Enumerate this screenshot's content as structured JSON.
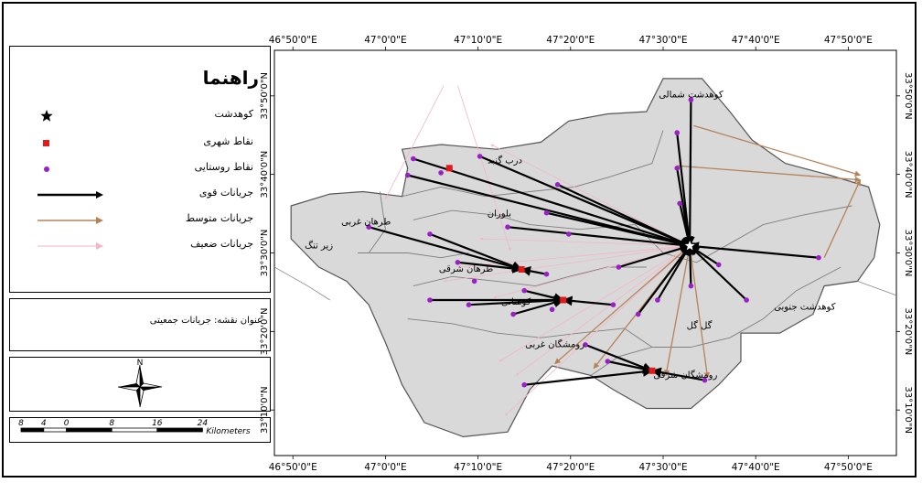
{
  "legend": {
    "title": "راهنما",
    "items": [
      {
        "label": "کوهدشت",
        "symbol": "star",
        "color": "#000000"
      },
      {
        "label": "نقاط شهری",
        "symbol": "square",
        "color": "#e31a1c"
      },
      {
        "label": "نقاط روستایی",
        "symbol": "dot",
        "color": "#9b1fc7"
      },
      {
        "label": "جریانات قوی",
        "symbol": "arrow-strong",
        "color": "#000000"
      },
      {
        "label": "جریانات متوسط",
        "symbol": "arrow-medium",
        "color": "#b5835a"
      },
      {
        "label": "جریانات ضعیف",
        "symbol": "arrow-weak",
        "color": "#f2b7c5"
      }
    ]
  },
  "map_title": "عنوان نقشه: جریانات جمعیتی",
  "scale_bar": {
    "ticks": [
      "8",
      "4",
      "0",
      "8",
      "16",
      "24"
    ],
    "unit": "Kilometers"
  },
  "north_label": "N",
  "x_ticks": [
    {
      "label": "46°50'0\"E",
      "lon": 46.8333
    },
    {
      "label": "47°0'0\"E",
      "lon": 47.0
    },
    {
      "label": "47°10'0\"E",
      "lon": 47.1667
    },
    {
      "label": "47°20'0\"E",
      "lon": 47.3333
    },
    {
      "label": "47°30'0\"E",
      "lon": 47.5
    },
    {
      "label": "47°40'0\"E",
      "lon": 47.6667
    },
    {
      "label": "47°50'0\"E",
      "lon": 47.8333
    }
  ],
  "y_ticks": [
    {
      "label": "33°50'0\"N",
      "lat": 33.8333
    },
    {
      "label": "33°40'0\"N",
      "lat": 33.6667
    },
    {
      "label": "33°30'0\"N",
      "lat": 33.5
    },
    {
      "label": "33°20'0\"N",
      "lat": 33.3333
    },
    {
      "label": "33°10'0\"N",
      "lat": 33.1667
    }
  ],
  "place_labels": [
    {
      "name": "کوهدشت شمالی",
      "lon": 47.55,
      "lat": 33.83
    },
    {
      "name": "درب گنبد",
      "lon": 47.215,
      "lat": 33.69
    },
    {
      "name": "بلوران",
      "lon": 47.205,
      "lat": 33.578
    },
    {
      "name": "طرهان غربی",
      "lon": 46.965,
      "lat": 33.56
    },
    {
      "name": "زیر تنگ",
      "lon": 46.88,
      "lat": 33.51
    },
    {
      "name": "طرهان شرقی",
      "lon": 47.145,
      "lat": 33.46
    },
    {
      "name": "کوهنانی",
      "lon": 47.235,
      "lat": 33.39
    },
    {
      "name": "کوهدشت جنوبی",
      "lon": 47.755,
      "lat": 33.38
    },
    {
      "name": "گل گل",
      "lon": 47.565,
      "lat": 33.34
    },
    {
      "name": "رومشگان غربی",
      "lon": 47.305,
      "lat": 33.3
    },
    {
      "name": "رومشگان شرقی",
      "lon": 47.54,
      "lat": 33.235
    }
  ],
  "hub": {
    "name": "کوهدشت",
    "lon": 47.548,
    "lat": 33.515
  },
  "urban_points": [
    {
      "lon": 47.115,
      "lat": 33.68
    },
    {
      "lon": 47.245,
      "lat": 33.465
    },
    {
      "lon": 47.32,
      "lat": 33.4
    },
    {
      "lon": 47.48,
      "lat": 33.25
    }
  ],
  "strong_flows": [
    {
      "from": [
        47.17,
        33.705
      ],
      "to": [
        47.548,
        33.515
      ]
    },
    {
      "from": [
        47.05,
        33.7
      ],
      "to": [
        47.548,
        33.515
      ]
    },
    {
      "from": [
        47.04,
        33.665
      ],
      "to": [
        47.548,
        33.515
      ]
    },
    {
      "from": [
        47.31,
        33.645
      ],
      "to": [
        47.548,
        33.515
      ]
    },
    {
      "from": [
        47.29,
        33.585
      ],
      "to": [
        47.548,
        33.515
      ]
    },
    {
      "from": [
        47.22,
        33.555
      ],
      "to": [
        47.548,
        33.515
      ]
    },
    {
      "from": [
        47.53,
        33.605
      ],
      "to": [
        47.548,
        33.515
      ]
    },
    {
      "from": [
        47.55,
        33.825
      ],
      "to": [
        47.548,
        33.515
      ]
    },
    {
      "from": [
        47.525,
        33.755
      ],
      "to": [
        47.548,
        33.515
      ]
    },
    {
      "from": [
        47.525,
        33.68
      ],
      "to": [
        47.548,
        33.515
      ]
    },
    {
      "from": [
        47.78,
        33.49
      ],
      "to": [
        47.548,
        33.515
      ]
    },
    {
      "from": [
        47.6,
        33.475
      ],
      "to": [
        47.548,
        33.515
      ]
    },
    {
      "from": [
        47.65,
        33.4
      ],
      "to": [
        47.548,
        33.515
      ]
    },
    {
      "from": [
        47.55,
        33.43
      ],
      "to": [
        47.548,
        33.515
      ]
    },
    {
      "from": [
        47.49,
        33.4
      ],
      "to": [
        47.548,
        33.515
      ]
    },
    {
      "from": [
        47.455,
        33.37
      ],
      "to": [
        47.548,
        33.515
      ]
    },
    {
      "from": [
        47.42,
        33.47
      ],
      "to": [
        47.548,
        33.515
      ]
    },
    {
      "from": [
        46.97,
        33.555
      ],
      "to": [
        47.245,
        33.465
      ]
    },
    {
      "from": [
        47.08,
        33.54
      ],
      "to": [
        47.245,
        33.465
      ]
    },
    {
      "from": [
        47.13,
        33.48
      ],
      "to": [
        47.245,
        33.465
      ]
    },
    {
      "from": [
        47.29,
        33.455
      ],
      "to": [
        47.245,
        33.465
      ]
    },
    {
      "from": [
        47.08,
        33.4
      ],
      "to": [
        47.32,
        33.4
      ]
    },
    {
      "from": [
        47.15,
        33.39
      ],
      "to": [
        47.32,
        33.4
      ]
    },
    {
      "from": [
        47.23,
        33.37
      ],
      "to": [
        47.32,
        33.4
      ]
    },
    {
      "from": [
        47.25,
        33.42
      ],
      "to": [
        47.32,
        33.4
      ]
    },
    {
      "from": [
        47.41,
        33.39
      ],
      "to": [
        47.32,
        33.4
      ]
    },
    {
      "from": [
        47.25,
        33.22
      ],
      "to": [
        47.48,
        33.25
      ]
    },
    {
      "from": [
        47.36,
        33.305
      ],
      "to": [
        47.48,
        33.25
      ]
    },
    {
      "from": [
        47.4,
        33.27
      ],
      "to": [
        47.48,
        33.25
      ]
    },
    {
      "from": [
        47.575,
        33.23
      ],
      "to": [
        47.48,
        33.25
      ]
    }
  ],
  "medium_flows": [
    {
      "from": [
        47.555,
        33.77
      ],
      "to": [
        47.855,
        33.665
      ]
    },
    {
      "from": [
        47.525,
        33.685
      ],
      "to": [
        47.855,
        33.655
      ]
    },
    {
      "from": [
        47.79,
        33.49
      ],
      "to": [
        47.855,
        33.655
      ]
    },
    {
      "from": [
        47.548,
        33.515
      ],
      "to": [
        47.305,
        33.265
      ]
    },
    {
      "from": [
        47.548,
        33.515
      ],
      "to": [
        47.375,
        33.255
      ]
    },
    {
      "from": [
        47.548,
        33.515
      ],
      "to": [
        47.505,
        33.24
      ]
    },
    {
      "from": [
        47.548,
        33.515
      ],
      "to": [
        47.58,
        33.235
      ]
    }
  ],
  "weak_flows": [
    {
      "from": [
        47.548,
        33.515
      ],
      "to": [
        47.19,
        33.73
      ]
    },
    {
      "from": [
        47.548,
        33.515
      ],
      "to": [
        47.17,
        33.53
      ]
    },
    {
      "from": [
        47.548,
        33.515
      ],
      "to": [
        47.13,
        33.47
      ]
    },
    {
      "from": [
        47.548,
        33.515
      ],
      "to": [
        47.105,
        33.44
      ]
    },
    {
      "from": [
        47.548,
        33.515
      ],
      "to": [
        47.195,
        33.405
      ]
    },
    {
      "from": [
        47.548,
        33.515
      ],
      "to": [
        47.205,
        33.27
      ]
    },
    {
      "from": [
        47.548,
        33.515
      ],
      "to": [
        47.215,
        33.155
      ]
    },
    {
      "from": [
        47.548,
        33.515
      ],
      "to": [
        47.235,
        33.24
      ]
    },
    {
      "from": [
        47.105,
        33.855
      ],
      "to": [
        47.0,
        33.615
      ]
    },
    {
      "from": [
        47.13,
        33.855
      ],
      "to": [
        47.225,
        33.505
      ]
    }
  ],
  "rural_points": [
    [
      47.17,
      33.705
    ],
    [
      47.05,
      33.7
    ],
    [
      47.04,
      33.665
    ],
    [
      47.31,
      33.645
    ],
    [
      47.29,
      33.585
    ],
    [
      47.22,
      33.555
    ],
    [
      47.53,
      33.605
    ],
    [
      47.55,
      33.825
    ],
    [
      47.525,
      33.755
    ],
    [
      47.525,
      33.68
    ],
    [
      47.78,
      33.49
    ],
    [
      47.6,
      33.475
    ],
    [
      47.65,
      33.4
    ],
    [
      47.55,
      33.43
    ],
    [
      47.49,
      33.4
    ],
    [
      47.455,
      33.37
    ],
    [
      47.42,
      33.47
    ],
    [
      46.97,
      33.555
    ],
    [
      47.08,
      33.54
    ],
    [
      47.13,
      33.48
    ],
    [
      47.29,
      33.455
    ],
    [
      47.08,
      33.4
    ],
    [
      47.15,
      33.39
    ],
    [
      47.23,
      33.37
    ],
    [
      47.25,
      33.42
    ],
    [
      47.41,
      33.39
    ],
    [
      47.25,
      33.22
    ],
    [
      47.36,
      33.305
    ],
    [
      47.4,
      33.27
    ],
    [
      47.575,
      33.23
    ],
    [
      47.1,
      33.67
    ],
    [
      47.33,
      33.54
    ],
    [
      47.16,
      33.44
    ],
    [
      47.3,
      33.38
    ]
  ],
  "colors": {
    "land": "#d9d9d9",
    "district_border": "#7f7f7f",
    "strong": "#000000",
    "medium": "#b5835a",
    "weak": "#f2b7c5",
    "rural": "#9b1fc7",
    "urban": "#e31a1c"
  }
}
